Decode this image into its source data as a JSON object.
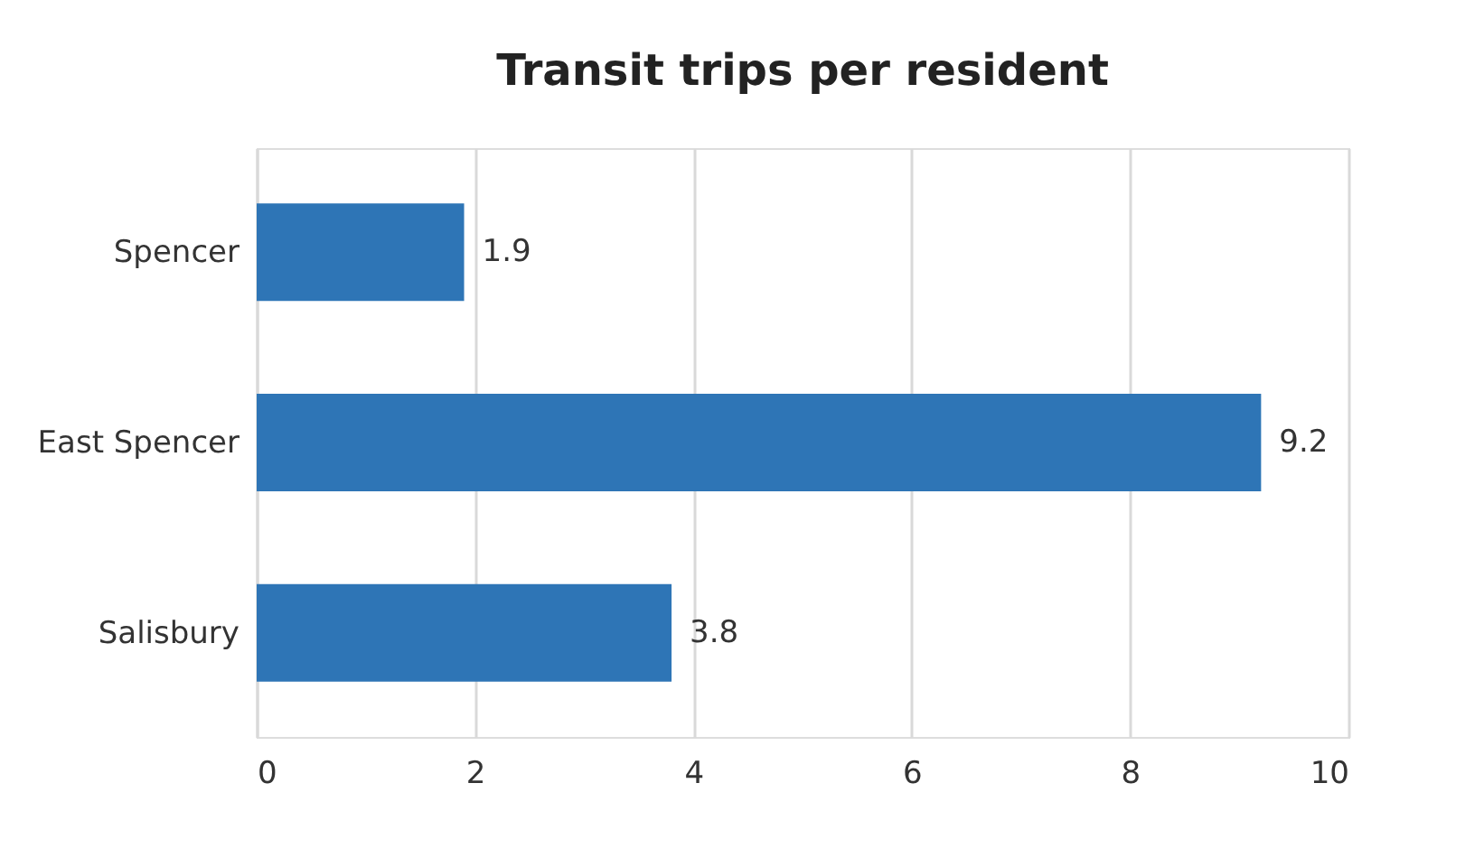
{
  "chart_data": {
    "type": "bar",
    "orientation": "horizontal",
    "title": "Transit trips per resident",
    "categories": [
      "Spencer",
      "East Spencer",
      "Salisbury"
    ],
    "values": [
      1.9,
      9.2,
      3.8
    ],
    "color": "#2e75b6",
    "xlim": [
      0,
      10
    ],
    "xticks": [
      0,
      2,
      4,
      6,
      8,
      10
    ],
    "grid": "x",
    "data_labels": true
  }
}
